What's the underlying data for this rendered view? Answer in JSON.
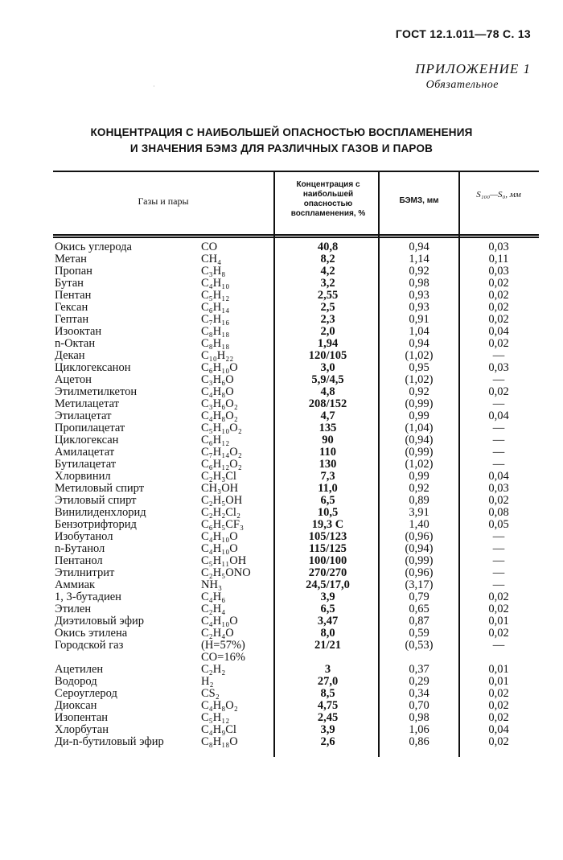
{
  "header": {
    "gost": "ГОСТ 12.1.011—78 С. 13",
    "appendix": "ПРИЛОЖЕНИЕ 1",
    "status": "Обязательное"
  },
  "title": {
    "line1": "КОНЦЕНТРАЦИЯ С НАИБОЛЬШЕЙ ОПАСНОСТЬЮ ВОСПЛАМЕНЕНИЯ",
    "line2": "И ЗНАЧЕНИЯ БЭМЗ ДЛЯ РАЗЛИЧНЫХ ГАЗОВ И ПАРОВ"
  },
  "table": {
    "columns": {
      "gas": "Газы и пары",
      "conc": "Концентрация с наибольшей опасностью воспламенения, %",
      "bemz": "БЭМЗ, мм",
      "s": "S₁₀₀—S₀, мм"
    },
    "rows": [
      {
        "name": "Окись углерода",
        "formula": "CO",
        "conc": "40,8",
        "bemz": "0,94",
        "s": "0,03"
      },
      {
        "name": "Метан",
        "formula": "CH₄",
        "conc": "8,2",
        "bemz": "1,14",
        "s": "0,11"
      },
      {
        "name": "Пропан",
        "formula": "C₃H₈",
        "conc": "4,2",
        "bemz": "0,92",
        "s": "0,03"
      },
      {
        "name": "Бутан",
        "formula": "C₄H₁₀",
        "conc": "3,2",
        "bemz": "0,98",
        "s": "0,02"
      },
      {
        "name": "Пентан",
        "formula": "C₅H₁₂",
        "conc": "2,55",
        "bemz": "0,93",
        "s": "0,02"
      },
      {
        "name": "Гексан",
        "formula": "C₆H₁₄",
        "conc": "2,5",
        "bemz": "0,93",
        "s": "0,02"
      },
      {
        "name": "Гептан",
        "formula": "C₇H₁₆",
        "conc": "2,3",
        "bemz": "0,91",
        "s": "0,02"
      },
      {
        "name": "Изооктан",
        "formula": "C₈H₁₈",
        "conc": "2,0",
        "bemz": "1,04",
        "s": "0,04"
      },
      {
        "name": "n-Октан",
        "formula": "C₈H₁₈",
        "conc": "1,94",
        "bemz": "0,94",
        "s": "0,02"
      },
      {
        "name": "Декан",
        "formula": "C₁₀H₂₂",
        "conc": "120/105",
        "bemz": "(1,02)",
        "s": "—"
      },
      {
        "name": "Циклогексанон",
        "formula": "C₆H₁₀O",
        "conc": "3,0",
        "bemz": "0,95",
        "s": "0,03"
      },
      {
        "name": "Ацетон",
        "formula": "C₃H₆O",
        "conc": "5,9/4,5",
        "bemz": "(1,02)",
        "s": "—"
      },
      {
        "name": "Этилметилкетон",
        "formula": "C₄H₈O",
        "conc": "4,8",
        "bemz": "0,92",
        "s": "0,02"
      },
      {
        "name": "Метилацетат",
        "formula": "C₃H₆O₂",
        "conc": "208/152",
        "bemz": "(0,99)",
        "s": "—"
      },
      {
        "name": "Этилацетат",
        "formula": "C₄H₈O₂",
        "conc": "4,7",
        "bemz": "0,99",
        "s": "0,04"
      },
      {
        "name": "Пропилацетат",
        "formula": "C₅H₁₀O₂",
        "conc": "135",
        "bemz": "(1,04)",
        "s": "—"
      },
      {
        "name": "Циклогексан",
        "formula": "C₆H₁₂",
        "conc": "90",
        "bemz": "(0,94)",
        "s": "—"
      },
      {
        "name": "Амилацетат",
        "formula": "C₇H₁₄O₂",
        "conc": "110",
        "bemz": "(0,99)",
        "s": "—"
      },
      {
        "name": "Бутилацетат",
        "formula": "C₆H₁₂O₂",
        "conc": "130",
        "bemz": "(1,02)",
        "s": "—"
      },
      {
        "name": "Хлорвинил",
        "formula": "C₂H₃Cl",
        "conc": "7,3",
        "bemz": "0,99",
        "s": "0,04"
      },
      {
        "name": "Метиловый спирт",
        "formula": "CH₃OH",
        "conc": "11,0",
        "bemz": "0,92",
        "s": "0,03"
      },
      {
        "name": "Этиловый спирт",
        "formula": "C₂H₅OH",
        "conc": "6,5",
        "bemz": "0,89",
        "s": "0,02"
      },
      {
        "name": "Винилиденхлорид",
        "formula": "C₂H₂Cl₂",
        "conc": "10,5",
        "bemz": "3,91",
        "s": "0,08"
      },
      {
        "name": "Бензотрифторид",
        "formula": "C₆H₅CF₃",
        "conc": "19,3 C",
        "bemz": "1,40",
        "s": "0,05"
      },
      {
        "name": "Изобутанол",
        "formula": "C₄H₁₀O",
        "conc": "105/123",
        "bemz": "(0,96)",
        "s": "—"
      },
      {
        "name": "n-Бутанол",
        "formula": "C₄H₁₀O",
        "conc": "115/125",
        "bemz": "(0,94)",
        "s": "—"
      },
      {
        "name": "Пентанол",
        "formula": "C₅H₁₁OH",
        "conc": "100/100",
        "bemz": "(0,99)",
        "s": "—"
      },
      {
        "name": "Этилнитрит",
        "formula": "C₂H₅ONO",
        "conc": "270/270",
        "bemz": "(0,96)",
        "s": "—"
      },
      {
        "name": "Аммиак",
        "formula": "NH₃",
        "conc": "24,5/17,0",
        "bemz": "(3,17)",
        "s": "—"
      },
      {
        "name": "1, 3-бутадиен",
        "formula": "C₄H₆",
        "conc": "3,9",
        "bemz": "0,79",
        "s": "0,02"
      },
      {
        "name": "Этилен",
        "formula": "C₂H₄",
        "conc": "6,5",
        "bemz": "0,65",
        "s": "0,02"
      },
      {
        "name": "Диэтиловый эфир",
        "formula": "C₄H₁₀O",
        "conc": "3,47",
        "bemz": "0,87",
        "s": "0,01"
      },
      {
        "name": "Окись этилена",
        "formula": "C₂H₄O",
        "conc": "8,0",
        "bemz": "0,59",
        "s": "0,02"
      },
      {
        "name": "Городской газ",
        "formula": "(H=57%)",
        "formula2": "CO=16%",
        "conc": "21/21",
        "bemz": "(0,53)",
        "s": "—"
      },
      {
        "name": "Ацетилен",
        "formula": "C₂H₂",
        "conc": "3",
        "bemz": "0,37",
        "s": "0,01"
      },
      {
        "name": "Водород",
        "formula": "H₂",
        "conc": "27,0",
        "bemz": "0,29",
        "s": "0,01"
      },
      {
        "name": "Сероуглерод",
        "formula": "CS₂",
        "conc": "8,5",
        "bemz": "0,34",
        "s": "0,02"
      },
      {
        "name": "Диоксан",
        "formula": "C₄H₈O₂",
        "conc": "4,75",
        "bemz": "0,70",
        "s": "0,02"
      },
      {
        "name": "Изопентан",
        "formula": "C₅H₁₂",
        "conc": "2,45",
        "bemz": "0,98",
        "s": "0,02"
      },
      {
        "name": "Хлорбутан",
        "formula": "C₄H₉Cl",
        "conc": "3,9",
        "bemz": "1,06",
        "s": "0,04"
      },
      {
        "name": "Ди-n-бутиловый эфир",
        "formula": "C₈H₁₈O",
        "conc": "2,6",
        "bemz": "0,86",
        "s": "0,02"
      }
    ]
  }
}
